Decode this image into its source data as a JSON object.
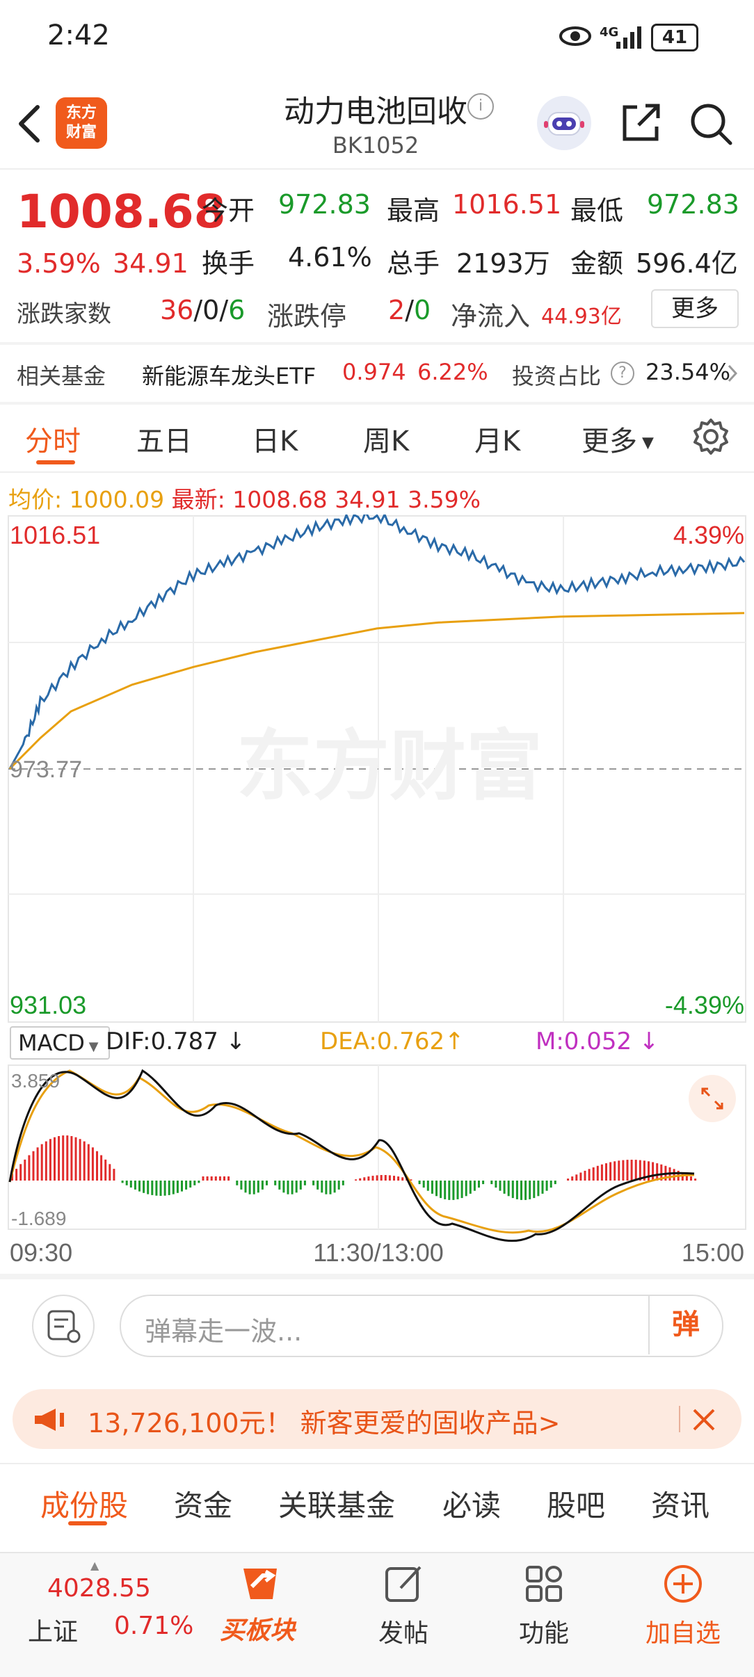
{
  "status_bar": {
    "time": "2:42",
    "network": "4G",
    "battery": "41"
  },
  "header": {
    "logo_line1": "东方",
    "logo_line2": "财富",
    "title": "动力电池回收",
    "code": "BK1052"
  },
  "quote": {
    "price": "1008.68",
    "change_pct": "3.59%",
    "change": "34.91",
    "open_label": "今开",
    "open": "972.83",
    "high_label": "最高",
    "high": "1016.51",
    "low_label": "最低",
    "low": "972.83",
    "turnover_label": "换手",
    "turnover": "4.61%",
    "volume_label": "总手",
    "volume": "2193万",
    "amount_label": "金额",
    "amount": "596.4亿",
    "updown_label": "涨跌家数",
    "up_count": "36",
    "flat_count": "0",
    "down_count": "6",
    "limit_label": "涨跌停",
    "limit_up": "2",
    "limit_down": "0",
    "netflow_label": "净流入",
    "netflow": "44.93亿",
    "more_label": "更多"
  },
  "fund": {
    "label": "相关基金",
    "name": "新能源车龙头ETF",
    "price": "0.974",
    "pct": "6.22%",
    "weight_label": "投资占比",
    "weight": "23.54%"
  },
  "tabs": [
    "分时",
    "五日",
    "日K",
    "周K",
    "月K",
    "更多"
  ],
  "legend": {
    "avg_label": "均价:",
    "avg_value": "1000.09",
    "latest_label": "最新:",
    "latest_value": "1008.68",
    "latest_change": "34.91",
    "latest_pct": "3.59%"
  },
  "chart_labels": {
    "y_top": "1016.51",
    "y_mid": "973.77",
    "y_bottom": "931.03",
    "pct_top": "4.39%",
    "pct_bottom": "-4.39%",
    "watermark": "东方财富",
    "x_start": "09:30",
    "x_mid": "11:30/13:00",
    "x_end": "15:00"
  },
  "macd": {
    "selector": "MACD",
    "dif": "DIF:0.787",
    "dea": "DEA:0.762",
    "m": "M:0.052",
    "y_top": "3.859",
    "y_bottom": "-1.689"
  },
  "chart_data": {
    "type": "line",
    "series": [
      {
        "name": "最新",
        "x": [
          0,
          5,
          10,
          20,
          30,
          40,
          50,
          60,
          70,
          80,
          90,
          100,
          110,
          120,
          130,
          140,
          150,
          160,
          170,
          180,
          190,
          200,
          210,
          220,
          230,
          240
        ],
        "values": [
          973.8,
          978.5,
          985.0,
          991.0,
          995.5,
          999.0,
          1003.0,
          1006.5,
          1008.5,
          1010.5,
          1012.5,
          1014.5,
          1016.0,
          1016.5,
          1014.0,
          1011.5,
          1010.0,
          1007.5,
          1005.0,
          1004.0,
          1005.0,
          1006.0,
          1007.0,
          1007.5,
          1008.0,
          1008.7
        ]
      },
      {
        "name": "均价",
        "x": [
          0,
          10,
          20,
          40,
          60,
          80,
          100,
          120,
          140,
          160,
          180,
          200,
          220,
          240
        ],
        "values": [
          973.8,
          979.0,
          983.5,
          988.0,
          991.0,
          993.5,
          995.5,
          997.5,
          998.5,
          999.0,
          999.5,
          999.7,
          999.9,
          1000.1
        ]
      }
    ],
    "ylim": [
      931.03,
      1016.51
    ],
    "x_ticks": [
      "09:30",
      "11:30/13:00",
      "15:00"
    ]
  },
  "comment": {
    "placeholder": "弹幕走一波...",
    "danmu_label": "弹"
  },
  "promo": {
    "text": "13,726,100元！ 新客更爱的固收产品>"
  },
  "sub_tabs": [
    "成份股",
    "资金",
    "关联基金",
    "必读",
    "股吧",
    "资讯"
  ],
  "bottom_bar": {
    "index_value": "4028.55",
    "index_name": "上证",
    "index_pct": "0.71%",
    "buy_label": "买板块",
    "post_label": "发帖",
    "func_label": "功能",
    "watch_label": "加自选"
  },
  "colors": {
    "up": "#e12b2b",
    "down": "#1a9a2a",
    "accent": "#f05a1c",
    "price_line": "#2a6aa8",
    "avg_line": "#e8a010",
    "dea": "#e8a010",
    "m": "#c030c0"
  }
}
